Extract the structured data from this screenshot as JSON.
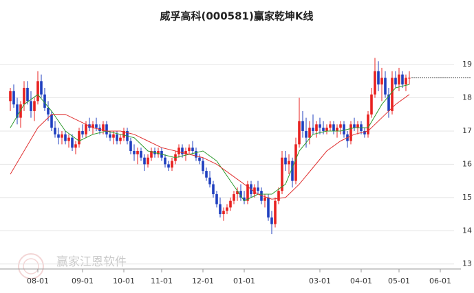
{
  "chart_data": {
    "type": "candlestick",
    "title": "威孚高科(000581)赢家乾坤K线",
    "watermark": "赢家江恩软件",
    "up_color": "#e8211f",
    "down_color": "#1f3fbf",
    "grid": true,
    "xlim": [
      0,
      129
    ],
    "xticks": [
      {
        "value": 8,
        "label": "08-01"
      },
      {
        "value": 21,
        "label": "09-01"
      },
      {
        "value": 33,
        "label": "10-01"
      },
      {
        "value": 44,
        "label": "11-01"
      },
      {
        "value": 56,
        "label": "12-01"
      },
      {
        "value": 68,
        "label": "01-01"
      },
      {
        "value": 90,
        "label": "03-01"
      },
      {
        "value": 102,
        "label": "04-01"
      },
      {
        "value": 113,
        "label": "05-01"
      },
      {
        "value": 125,
        "label": "06-01"
      }
    ],
    "ylim": [
      12.85,
      19.6
    ],
    "yticks": [
      13,
      14,
      15,
      16,
      17,
      18,
      19
    ],
    "ohlc": [
      [
        17.9,
        18.3,
        17.6,
        18.2
      ],
      [
        18.2,
        18.4,
        17.7,
        17.8
      ],
      [
        17.8,
        18.0,
        17.2,
        17.4
      ],
      [
        17.4,
        17.9,
        17.1,
        17.8
      ],
      [
        17.8,
        18.5,
        17.6,
        18.3
      ],
      [
        18.3,
        18.5,
        17.8,
        17.9
      ],
      [
        17.9,
        18.2,
        17.4,
        17.6
      ],
      [
        17.6,
        18.0,
        17.3,
        17.9
      ],
      [
        17.9,
        18.8,
        17.8,
        18.5
      ],
      [
        18.5,
        18.7,
        18.0,
        18.1
      ],
      [
        18.1,
        18.3,
        17.6,
        17.7
      ],
      [
        17.7,
        17.9,
        17.3,
        17.5
      ],
      [
        17.5,
        17.6,
        17.0,
        17.1
      ],
      [
        17.1,
        17.3,
        16.8,
        16.9
      ],
      [
        16.9,
        17.1,
        16.6,
        16.8
      ],
      [
        16.8,
        17.0,
        16.6,
        16.9
      ],
      [
        16.9,
        17.0,
        16.6,
        16.7
      ],
      [
        16.7,
        16.9,
        16.5,
        16.8
      ],
      [
        16.8,
        16.9,
        16.4,
        16.5
      ],
      [
        16.5,
        16.7,
        16.3,
        16.6
      ],
      [
        16.6,
        17.1,
        16.5,
        17.0
      ],
      [
        17.0,
        17.2,
        16.8,
        16.9
      ],
      [
        16.9,
        17.3,
        16.8,
        17.2
      ],
      [
        17.2,
        17.4,
        17.0,
        17.1
      ],
      [
        17.1,
        17.3,
        16.9,
        17.2
      ],
      [
        17.2,
        17.4,
        17.0,
        17.1
      ],
      [
        17.1,
        17.2,
        16.9,
        17.0
      ],
      [
        17.0,
        17.3,
        16.9,
        17.2
      ],
      [
        17.2,
        17.3,
        16.8,
        16.9
      ],
      [
        16.9,
        17.0,
        16.7,
        16.8
      ],
      [
        16.8,
        17.0,
        16.6,
        16.9
      ],
      [
        16.9,
        17.0,
        16.6,
        16.7
      ],
      [
        16.7,
        16.9,
        16.6,
        16.8
      ],
      [
        16.8,
        17.1,
        16.7,
        17.0
      ],
      [
        17.0,
        17.1,
        16.6,
        16.7
      ],
      [
        16.7,
        16.8,
        16.3,
        16.4
      ],
      [
        16.4,
        16.6,
        16.1,
        16.3
      ],
      [
        16.3,
        16.5,
        16.0,
        16.4
      ],
      [
        16.4,
        16.5,
        16.1,
        16.2
      ],
      [
        16.2,
        16.3,
        15.8,
        16.0
      ],
      [
        16.0,
        16.3,
        15.9,
        16.2
      ],
      [
        16.2,
        16.5,
        16.1,
        16.4
      ],
      [
        16.4,
        16.5,
        16.2,
        16.3
      ],
      [
        16.3,
        16.5,
        16.2,
        16.4
      ],
      [
        16.4,
        16.5,
        16.1,
        16.2
      ],
      [
        16.2,
        16.3,
        15.9,
        16.0
      ],
      [
        16.0,
        16.1,
        15.8,
        15.9
      ],
      [
        15.9,
        16.2,
        15.8,
        16.1
      ],
      [
        16.1,
        16.4,
        16.0,
        16.3
      ],
      [
        16.3,
        16.6,
        16.2,
        16.5
      ],
      [
        16.5,
        16.6,
        16.2,
        16.3
      ],
      [
        16.3,
        16.5,
        16.1,
        16.4
      ],
      [
        16.4,
        16.6,
        16.3,
        16.5
      ],
      [
        16.5,
        16.7,
        16.3,
        16.4
      ],
      [
        16.4,
        16.5,
        16.1,
        16.2
      ],
      [
        16.2,
        16.3,
        16.0,
        16.1
      ],
      [
        16.1,
        16.2,
        15.7,
        15.8
      ],
      [
        15.8,
        15.9,
        15.5,
        15.6
      ],
      [
        15.6,
        15.8,
        15.3,
        15.4
      ],
      [
        15.4,
        15.5,
        15.0,
        15.1
      ],
      [
        15.1,
        15.2,
        14.7,
        14.8
      ],
      [
        14.8,
        15.0,
        14.4,
        14.5
      ],
      [
        14.5,
        14.7,
        14.3,
        14.6
      ],
      [
        14.6,
        14.8,
        14.5,
        14.7
      ],
      [
        14.7,
        15.0,
        14.6,
        14.9
      ],
      [
        14.9,
        15.2,
        14.8,
        15.1
      ],
      [
        15.1,
        15.3,
        14.9,
        15.2
      ],
      [
        15.2,
        15.4,
        14.9,
        15.0
      ],
      [
        15.0,
        15.2,
        14.8,
        14.9
      ],
      [
        14.9,
        15.5,
        14.8,
        15.4
      ],
      [
        15.4,
        15.5,
        15.0,
        15.1
      ],
      [
        15.1,
        15.4,
        15.0,
        15.3
      ],
      [
        15.3,
        15.5,
        15.1,
        15.2
      ],
      [
        15.2,
        15.3,
        14.8,
        14.9
      ],
      [
        14.9,
        15.1,
        14.7,
        15.0
      ],
      [
        15.0,
        15.1,
        14.3,
        14.4
      ],
      [
        14.4,
        14.6,
        13.9,
        14.2
      ],
      [
        14.2,
        15.0,
        14.1,
        14.9
      ],
      [
        14.9,
        15.3,
        14.8,
        15.2
      ],
      [
        15.2,
        16.4,
        15.1,
        16.2
      ],
      [
        16.2,
        16.4,
        15.8,
        16.0
      ],
      [
        16.0,
        16.3,
        15.7,
        16.1
      ],
      [
        16.1,
        16.2,
        15.3,
        15.5
      ],
      [
        15.5,
        16.8,
        15.4,
        16.6
      ],
      [
        16.6,
        18.0,
        16.5,
        17.3
      ],
      [
        17.3,
        17.6,
        16.8,
        17.0
      ],
      [
        17.0,
        17.4,
        16.5,
        16.8
      ],
      [
        16.8,
        17.3,
        16.6,
        17.1
      ],
      [
        17.1,
        17.5,
        16.9,
        17.0
      ],
      [
        17.0,
        17.3,
        16.8,
        17.2
      ],
      [
        17.2,
        17.4,
        16.9,
        17.1
      ],
      [
        17.1,
        17.3,
        16.9,
        17.0
      ],
      [
        17.0,
        17.2,
        16.9,
        17.1
      ],
      [
        17.1,
        17.3,
        17.0,
        17.2
      ],
      [
        17.2,
        17.3,
        16.9,
        17.0
      ],
      [
        17.0,
        17.2,
        16.8,
        17.1
      ],
      [
        17.1,
        17.3,
        16.9,
        17.2
      ],
      [
        17.2,
        17.3,
        16.8,
        16.9
      ],
      [
        16.9,
        17.0,
        16.5,
        16.7
      ],
      [
        16.7,
        17.3,
        16.6,
        17.2
      ],
      [
        17.2,
        17.4,
        17.0,
        17.1
      ],
      [
        17.1,
        17.3,
        16.9,
        17.2
      ],
      [
        17.2,
        17.3,
        16.9,
        17.0
      ],
      [
        17.0,
        17.1,
        16.8,
        16.9
      ],
      [
        16.9,
        17.6,
        16.8,
        17.5
      ],
      [
        17.5,
        18.3,
        17.4,
        18.1
      ],
      [
        18.1,
        19.2,
        18.0,
        18.8
      ],
      [
        18.8,
        19.1,
        18.2,
        18.4
      ],
      [
        18.4,
        18.9,
        17.9,
        18.6
      ],
      [
        18.6,
        18.8,
        18.0,
        18.1
      ],
      [
        18.1,
        18.3,
        17.4,
        17.6
      ],
      [
        17.6,
        18.8,
        17.5,
        18.6
      ],
      [
        18.6,
        18.8,
        18.3,
        18.4
      ],
      [
        18.4,
        18.9,
        18.2,
        18.7
      ],
      [
        18.7,
        18.8,
        18.3,
        18.4
      ],
      [
        18.4,
        18.7,
        18.2,
        18.6
      ],
      [
        18.6,
        18.8,
        18.4,
        18.6
      ]
    ],
    "series": [
      {
        "color": "#2e9a2e",
        "x": [
          0,
          4,
          8,
          12,
          16,
          20,
          24,
          28,
          32,
          36,
          40,
          44,
          48,
          52,
          56,
          60,
          64,
          68,
          72,
          76,
          80,
          84,
          88,
          92,
          96,
          100,
          104,
          108,
          112,
          116
        ],
        "values": [
          17.1,
          17.8,
          18.1,
          17.6,
          17.0,
          16.7,
          16.9,
          17.0,
          16.9,
          16.8,
          16.4,
          16.3,
          16.2,
          16.3,
          16.4,
          16.1,
          15.5,
          14.9,
          15.1,
          15.1,
          15.4,
          16.4,
          16.9,
          17.0,
          17.0,
          17.1,
          17.1,
          17.8,
          18.3,
          18.4
        ]
      },
      {
        "color": "#e03030",
        "x": [
          0,
          4,
          8,
          12,
          16,
          20,
          24,
          28,
          32,
          36,
          40,
          44,
          48,
          52,
          56,
          60,
          64,
          68,
          72,
          76,
          80,
          84,
          88,
          92,
          96,
          100,
          104,
          108,
          112,
          116
        ],
        "values": [
          15.7,
          16.4,
          17.1,
          17.5,
          17.5,
          17.3,
          17.1,
          17.0,
          17.0,
          16.9,
          16.7,
          16.5,
          16.4,
          16.3,
          16.2,
          16.0,
          15.7,
          15.4,
          15.1,
          14.95,
          15.0,
          15.4,
          15.9,
          16.4,
          16.7,
          16.9,
          17.0,
          17.4,
          17.8,
          18.1
        ]
      }
    ]
  }
}
